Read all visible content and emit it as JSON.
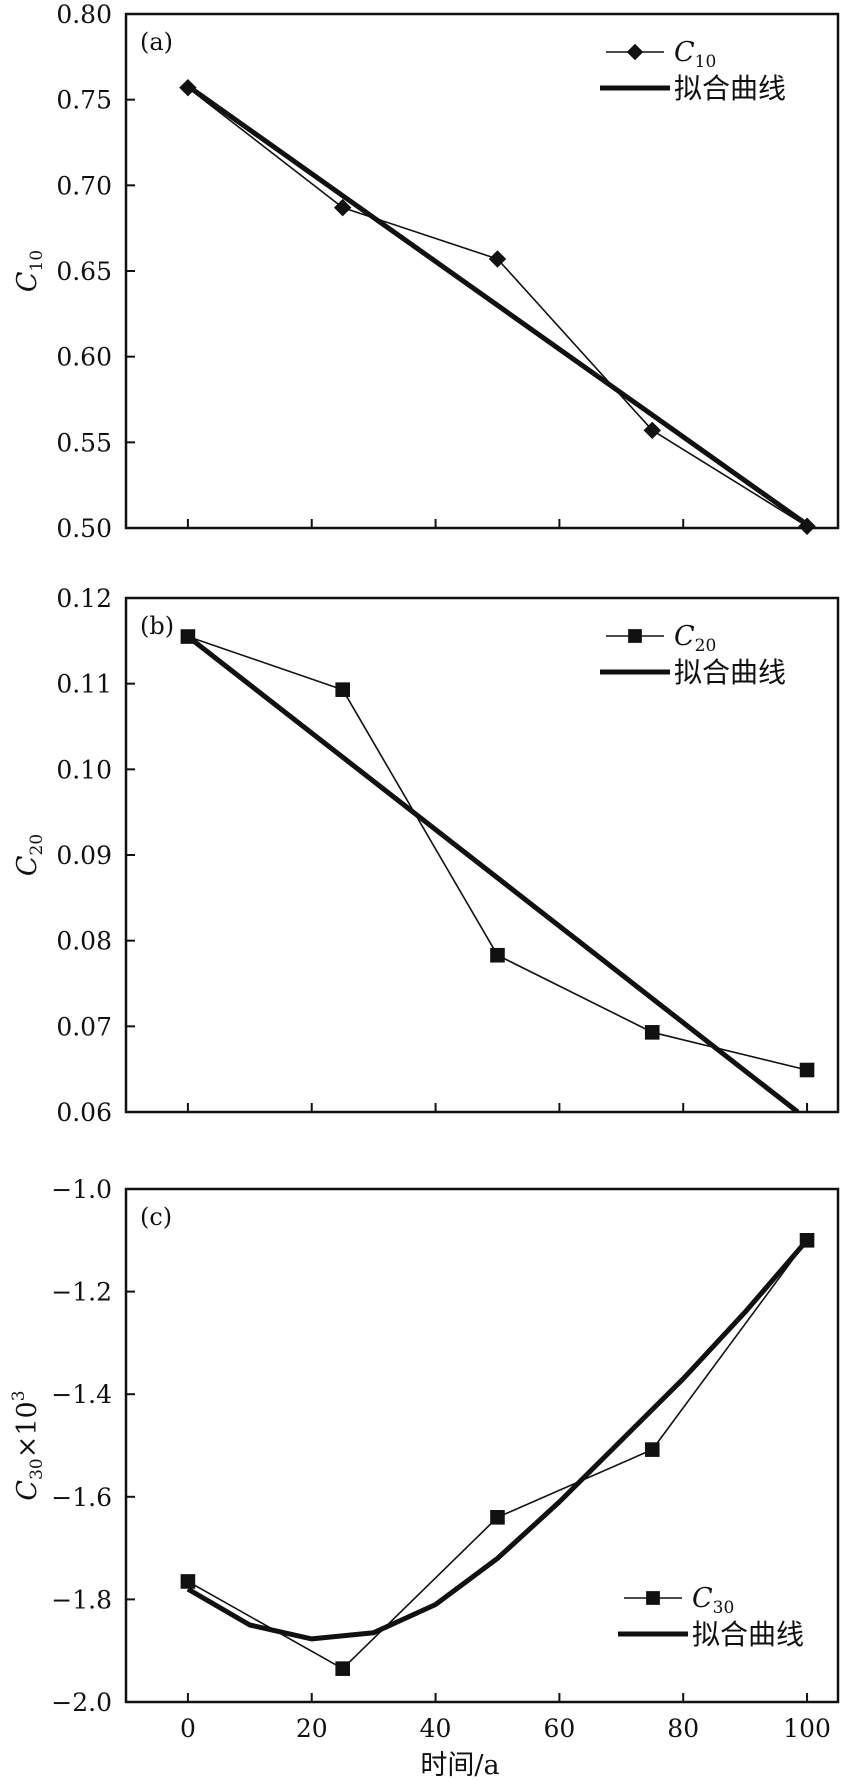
{
  "chart_data": [
    {
      "type": "line",
      "panel_label": "(a)",
      "ylabel": {
        "sym": "C",
        "sub": "10",
        "sup": "",
        "suffix": ""
      },
      "ylim": [
        0.5,
        0.8
      ],
      "yticks": [
        "0.80",
        "0.75",
        "0.70",
        "0.65",
        "0.60",
        "0.55",
        "0.50"
      ],
      "xlim": [
        -10,
        105
      ],
      "xticks": [
        "0",
        "20",
        "40",
        "60",
        "80",
        "100"
      ],
      "show_xtick_labels": false,
      "xlabel": "",
      "grid": false,
      "legend_position": "top-right",
      "series": [
        {
          "name": "C10",
          "name_sym": "C",
          "name_sub": "10",
          "marker": "diamond",
          "x": [
            0,
            25,
            50,
            75,
            100
          ],
          "y": [
            0.757,
            0.687,
            0.657,
            0.557,
            0.501
          ]
        },
        {
          "name": "拟合曲线",
          "marker": "none",
          "fit": "linear",
          "x": [
            0,
            100
          ],
          "y": [
            0.758,
            0.502
          ]
        }
      ]
    },
    {
      "type": "line",
      "panel_label": "(b)",
      "ylabel": {
        "sym": "C",
        "sub": "20",
        "sup": "",
        "suffix": ""
      },
      "ylim": [
        0.06,
        0.12
      ],
      "yticks": [
        "0.12",
        "0.11",
        "0.10",
        "0.09",
        "0.08",
        "0.07",
        "0.06"
      ],
      "xlim": [
        -10,
        105
      ],
      "xticks": [
        "0",
        "20",
        "40",
        "60",
        "80",
        "100"
      ],
      "show_xtick_labels": false,
      "xlabel": "",
      "grid": false,
      "legend_position": "top-right",
      "series": [
        {
          "name": "C20",
          "name_sym": "C",
          "name_sub": "20",
          "marker": "square",
          "x": [
            0,
            25,
            50,
            75,
            100
          ],
          "y": [
            0.1155,
            0.1093,
            0.0783,
            0.0693,
            0.0649
          ]
        },
        {
          "name": "拟合曲线",
          "marker": "none",
          "fit": "linear",
          "x": [
            0,
            98.5
          ],
          "y": [
            0.1155,
            0.06
          ]
        }
      ]
    },
    {
      "type": "line",
      "panel_label": "(c)",
      "ylabel": {
        "sym": "C",
        "sub": "30",
        "sup": "3",
        "suffix": "×10"
      },
      "ylim": [
        -2.0,
        -1.0
      ],
      "yticks": [
        "−1.0",
        "−1.2",
        "−1.4",
        "−1.6",
        "−1.8",
        "−2.0"
      ],
      "xlim": [
        -10,
        105
      ],
      "xticks": [
        "0",
        "20",
        "40",
        "60",
        "80",
        "100"
      ],
      "show_xtick_labels": true,
      "xlabel": "时间/a",
      "grid": false,
      "legend_position": "bottom-right",
      "series": [
        {
          "name": "C30",
          "name_sym": "C",
          "name_sub": "30",
          "marker": "square",
          "x": [
            0,
            25,
            50,
            75,
            100
          ],
          "y": [
            -1.765,
            -1.935,
            -1.64,
            -1.508,
            -1.1
          ]
        },
        {
          "name": "拟合曲线",
          "marker": "none",
          "fit": "quadratic",
          "x": [
            0,
            10,
            20,
            30,
            40,
            50,
            60,
            70,
            80,
            90,
            100
          ],
          "y": [
            -1.78,
            -1.85,
            -1.877,
            -1.865,
            -1.81,
            -1.72,
            -1.61,
            -1.49,
            -1.37,
            -1.24,
            -1.1
          ]
        }
      ]
    }
  ]
}
